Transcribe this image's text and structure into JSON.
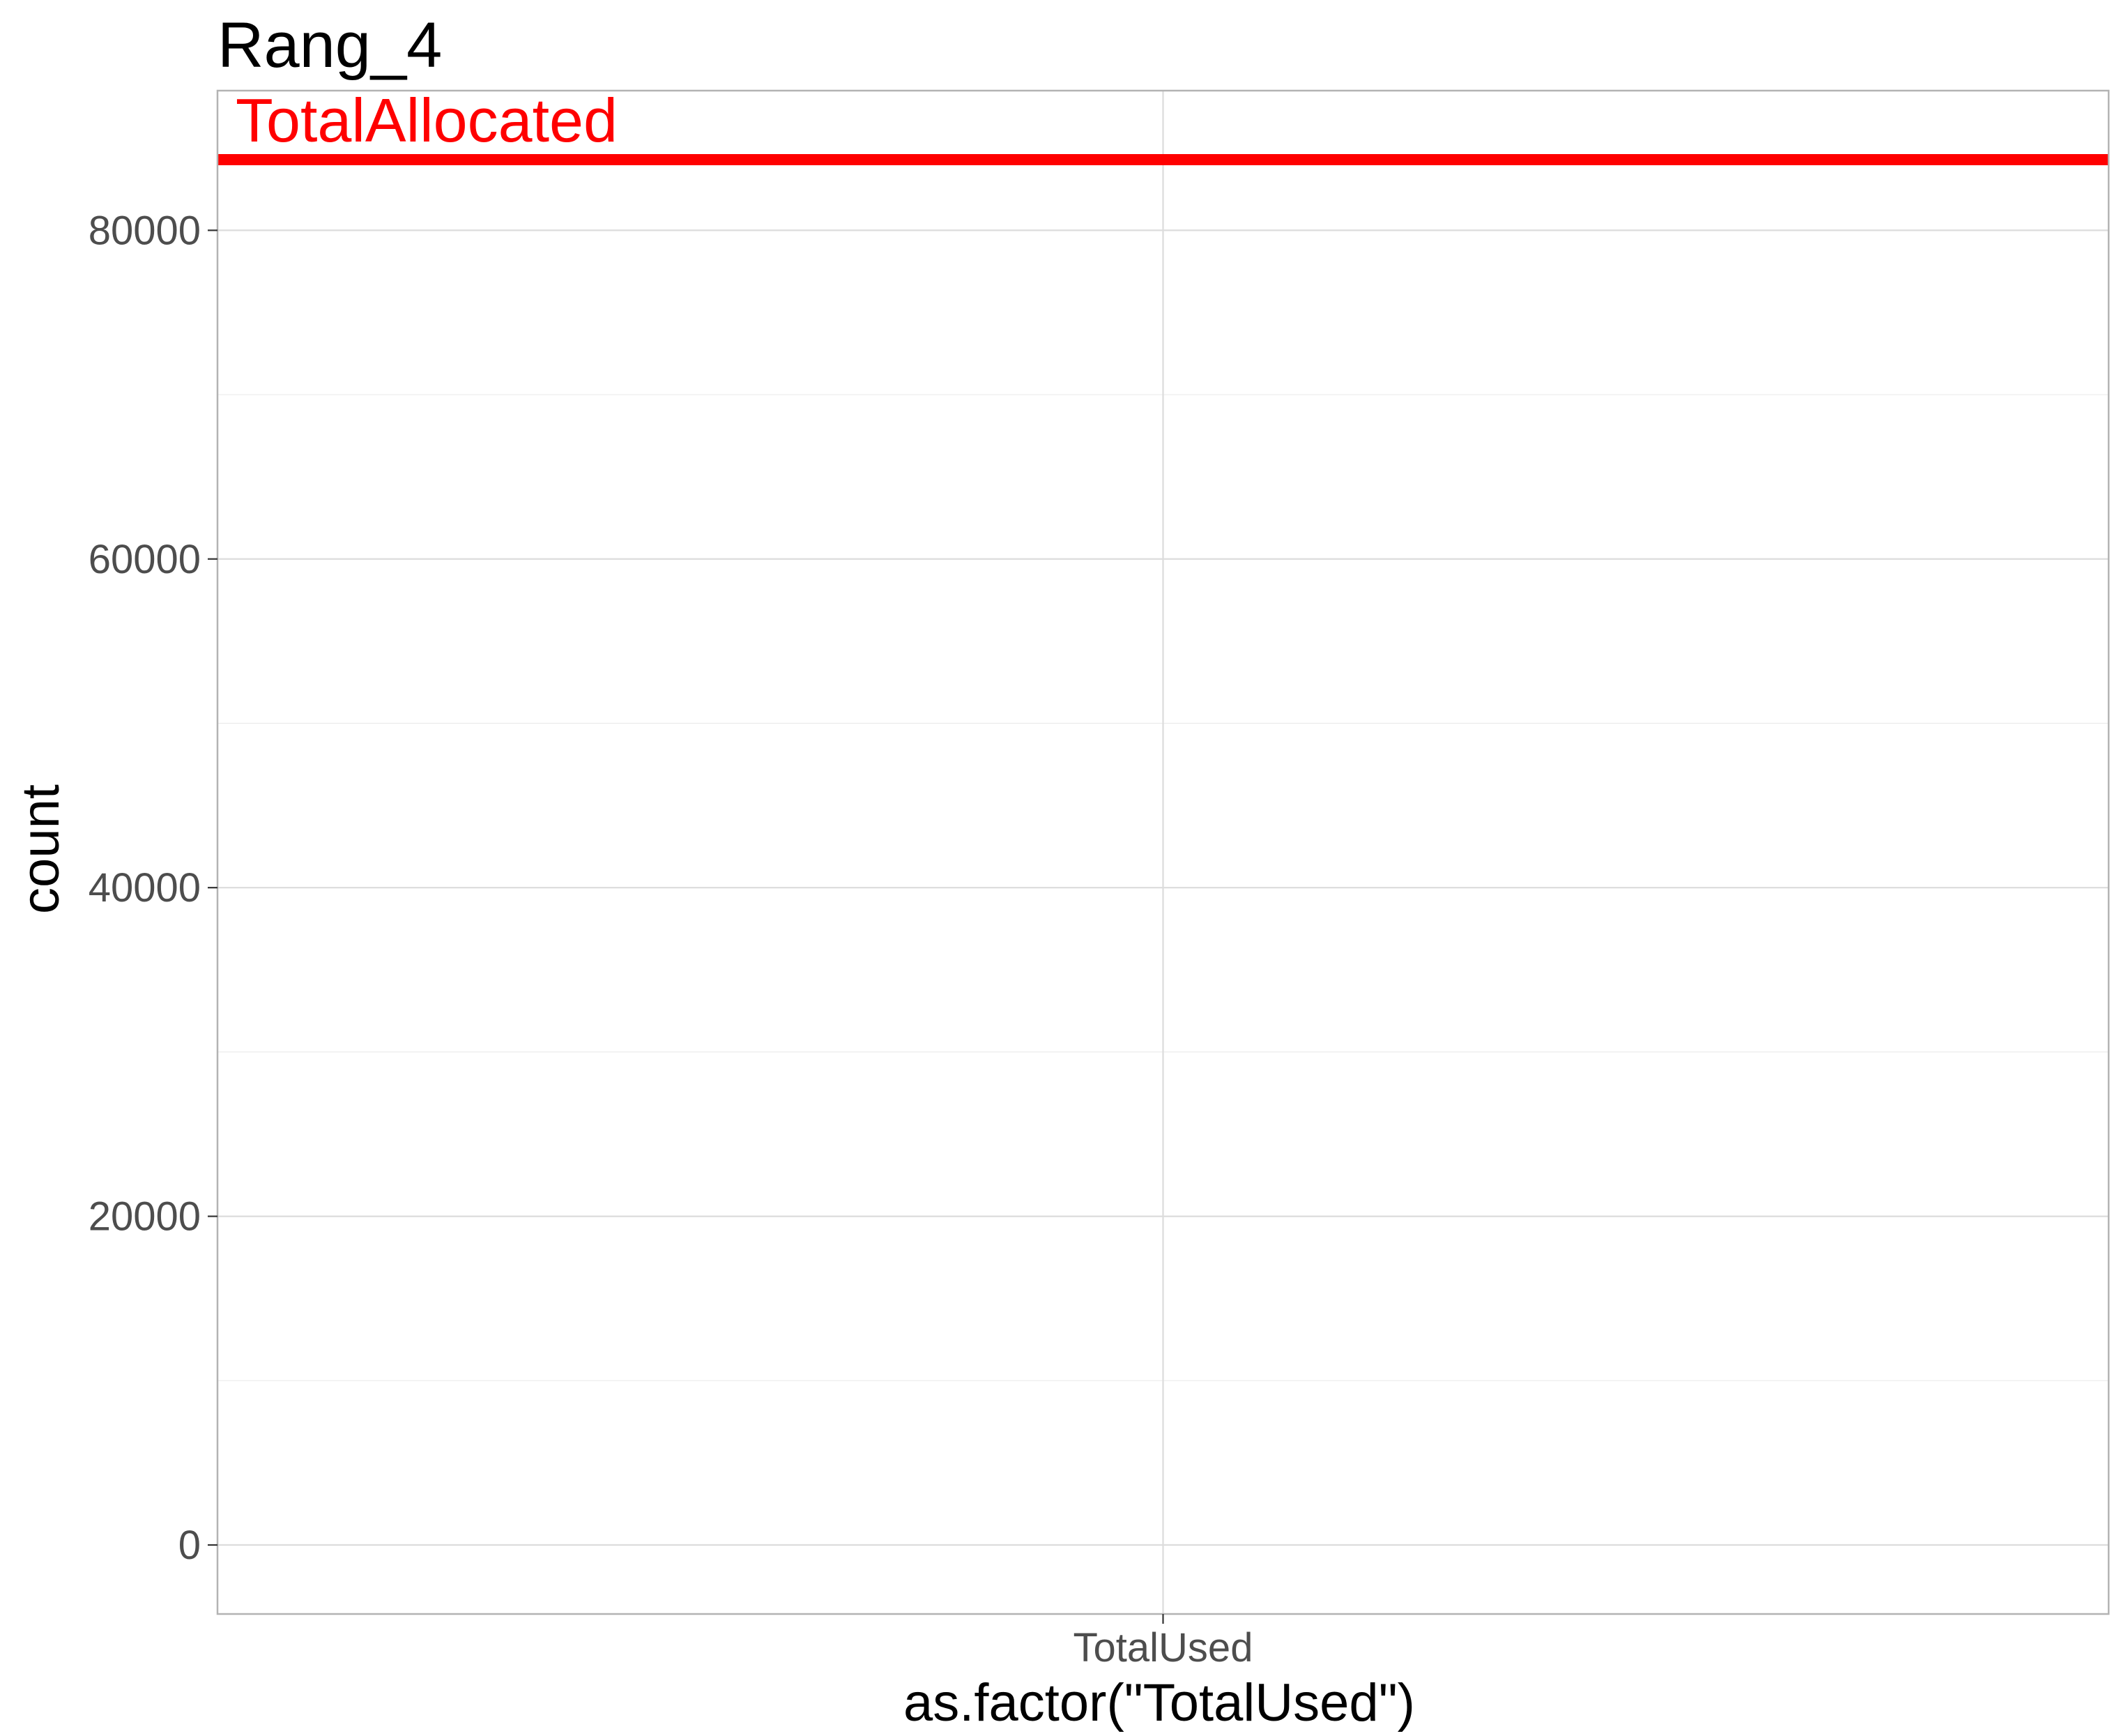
{
  "chart_data": {
    "type": "bar",
    "title": "Rang_4",
    "xlabel": "as.factor(\"TotalUsed\")",
    "ylabel": "count",
    "categories": [
      "TotalUsed"
    ],
    "values": [
      0
    ],
    "ylim": [
      -4200,
      88500
    ],
    "y_ticks": [
      0,
      20000,
      40000,
      60000,
      80000
    ],
    "y_tick_labels": [
      "0",
      "20000",
      "40000",
      "60000",
      "80000"
    ],
    "grid": true,
    "reference_line": {
      "label": "TotalAllocated",
      "value": 84300,
      "color": "#ff0000"
    }
  }
}
